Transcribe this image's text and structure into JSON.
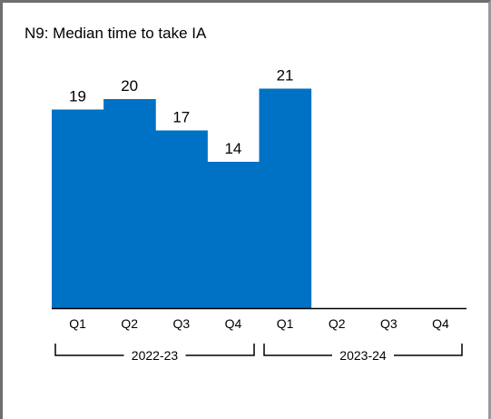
{
  "chart_data": {
    "type": "bar",
    "title": "N9: Median time to take IA",
    "categories": [
      "Q1",
      "Q2",
      "Q3",
      "Q4",
      "Q1",
      "Q2",
      "Q3",
      "Q4"
    ],
    "groups": [
      {
        "label": "2022-23",
        "categories": [
          "Q1",
          "Q2",
          "Q3",
          "Q4"
        ]
      },
      {
        "label": "2023-24",
        "categories": [
          "Q1",
          "Q2",
          "Q3",
          "Q4"
        ]
      }
    ],
    "values": [
      19,
      20,
      17,
      14,
      21,
      null,
      null,
      null
    ],
    "data_labels": [
      "19",
      "20",
      "17",
      "14",
      "21",
      "",
      "",
      ""
    ],
    "ylim": [
      0,
      25
    ],
    "grid": false,
    "legend": "none",
    "bar_color": "#0072C6",
    "axis_color": "#000000"
  }
}
